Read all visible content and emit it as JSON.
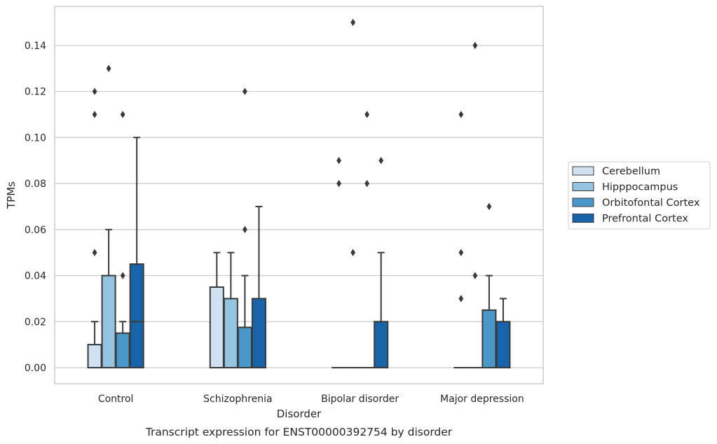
{
  "chart_data": {
    "type": "box",
    "caption": "Transcript expression for ENST00000392754 by disorder",
    "xlabel": "Disorder",
    "ylabel": "TPMs",
    "ylim": [
      -0.007,
      0.157
    ],
    "yticks": [
      0.0,
      0.02,
      0.04,
      0.06,
      0.08,
      0.1,
      0.12,
      0.14
    ],
    "ytick_labels": [
      "0.00",
      "0.02",
      "0.04",
      "0.06",
      "0.08",
      "0.10",
      "0.12",
      "0.14"
    ],
    "grid": "horizontal",
    "legend_position": "right",
    "categories": [
      "Control",
      "Schizophrenia",
      "Bipolar disorder",
      "Major depression"
    ],
    "series": [
      {
        "name": "Cerebellum",
        "color": "#d0e1f2",
        "boxes": [
          {
            "q1": 0.0,
            "median": 0.0,
            "q3": 0.01,
            "whisker_low": 0.0,
            "whisker_high": 0.02,
            "outliers": [
              0.05,
              0.11,
              0.12
            ]
          },
          {
            "q1": 0.0,
            "median": 0.0,
            "q3": 0.035,
            "whisker_low": 0.0,
            "whisker_high": 0.05,
            "outliers": []
          },
          {
            "q1": 0.0,
            "median": 0.0,
            "q3": 0.0,
            "whisker_low": 0.0,
            "whisker_high": 0.0,
            "outliers": [
              0.08,
              0.09
            ]
          },
          {
            "q1": 0.0,
            "median": 0.0,
            "q3": 0.0,
            "whisker_low": 0.0,
            "whisker_high": 0.0,
            "outliers": [
              0.03,
              0.05,
              0.11
            ]
          }
        ]
      },
      {
        "name": "Hipppocampus",
        "color": "#94c4df",
        "boxes": [
          {
            "q1": 0.0,
            "median": 0.0,
            "q3": 0.04,
            "whisker_low": 0.0,
            "whisker_high": 0.06,
            "outliers": [
              0.13
            ]
          },
          {
            "q1": 0.0,
            "median": 0.0,
            "q3": 0.03,
            "whisker_low": 0.0,
            "whisker_high": 0.05,
            "outliers": []
          },
          {
            "q1": 0.0,
            "median": 0.0,
            "q3": 0.0,
            "whisker_low": 0.0,
            "whisker_high": 0.0,
            "outliers": [
              0.05,
              0.15
            ]
          },
          {
            "q1": 0.0,
            "median": 0.0,
            "q3": 0.0,
            "whisker_low": 0.0,
            "whisker_high": 0.0,
            "outliers": [
              0.04,
              0.14
            ]
          }
        ]
      },
      {
        "name": "Orbitofontal Cortex",
        "color": "#4a98c9",
        "boxes": [
          {
            "q1": 0.0,
            "median": 0.0,
            "q3": 0.015,
            "whisker_low": 0.0,
            "whisker_high": 0.02,
            "outliers": [
              0.04,
              0.11
            ]
          },
          {
            "q1": 0.0,
            "median": 0.0,
            "q3": 0.0175,
            "whisker_low": 0.0,
            "whisker_high": 0.04,
            "outliers": [
              0.06,
              0.12
            ]
          },
          {
            "q1": 0.0,
            "median": 0.0,
            "q3": 0.0,
            "whisker_low": 0.0,
            "whisker_high": 0.0,
            "outliers": [
              0.08,
              0.11
            ]
          },
          {
            "q1": 0.0,
            "median": 0.0,
            "q3": 0.025,
            "whisker_low": 0.0,
            "whisker_high": 0.04,
            "outliers": [
              0.07
            ]
          }
        ]
      },
      {
        "name": "Prefrontal Cortex",
        "color": "#1764ab",
        "boxes": [
          {
            "q1": 0.0,
            "median": 0.02,
            "q3": 0.045,
            "whisker_low": 0.0,
            "whisker_high": 0.1,
            "outliers": []
          },
          {
            "q1": 0.0,
            "median": 0.0,
            "q3": 0.03,
            "whisker_low": 0.0,
            "whisker_high": 0.07,
            "outliers": []
          },
          {
            "q1": 0.0,
            "median": 0.0,
            "q3": 0.02,
            "whisker_low": 0.0,
            "whisker_high": 0.05,
            "outliers": [
              0.09
            ]
          },
          {
            "q1": 0.0,
            "median": 0.0,
            "q3": 0.02,
            "whisker_low": 0.0,
            "whisker_high": 0.03,
            "outliers": []
          }
        ]
      }
    ]
  }
}
